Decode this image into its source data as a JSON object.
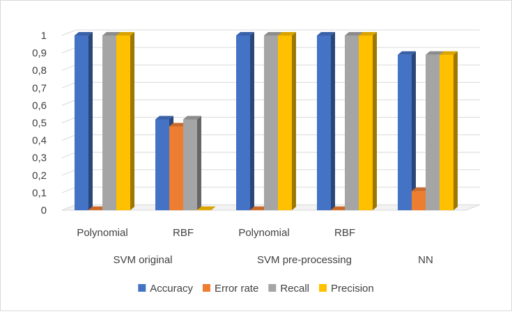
{
  "chart_data": {
    "type": "bar",
    "style": "3d-clustered-column",
    "groups": [
      {
        "label": "SVM original",
        "categories": [
          "Polynomial",
          "RBF"
        ]
      },
      {
        "label": "SVM pre-processing",
        "categories": [
          "Polynomial",
          "RBF"
        ]
      },
      {
        "label": "NN",
        "categories": [
          ""
        ]
      }
    ],
    "categories": [
      "Polynomial",
      "RBF",
      "Polynomial",
      "RBF",
      ""
    ],
    "series": [
      {
        "name": "Accuracy",
        "color": "#4472c4",
        "values": [
          1.0,
          0.52,
          1.0,
          1.0,
          0.89
        ]
      },
      {
        "name": "Error rate",
        "color": "#ed7d31",
        "values": [
          0.0,
          0.48,
          0.0,
          0.0,
          0.11
        ]
      },
      {
        "name": "Recall",
        "color": "#a5a5a5",
        "values": [
          1.0,
          0.52,
          1.0,
          1.0,
          0.89
        ]
      },
      {
        "name": "Precision",
        "color": "#ffc000",
        "values": [
          1.0,
          0.0,
          1.0,
          1.0,
          0.89
        ]
      }
    ],
    "ylim": [
      0,
      1
    ],
    "yticks": [
      "0",
      "0,1",
      "0,2",
      "0,3",
      "0,4",
      "0,5",
      "0,6",
      "0,7",
      "0,8",
      "0,9",
      "1"
    ],
    "grid": true,
    "legend_position": "bottom"
  }
}
